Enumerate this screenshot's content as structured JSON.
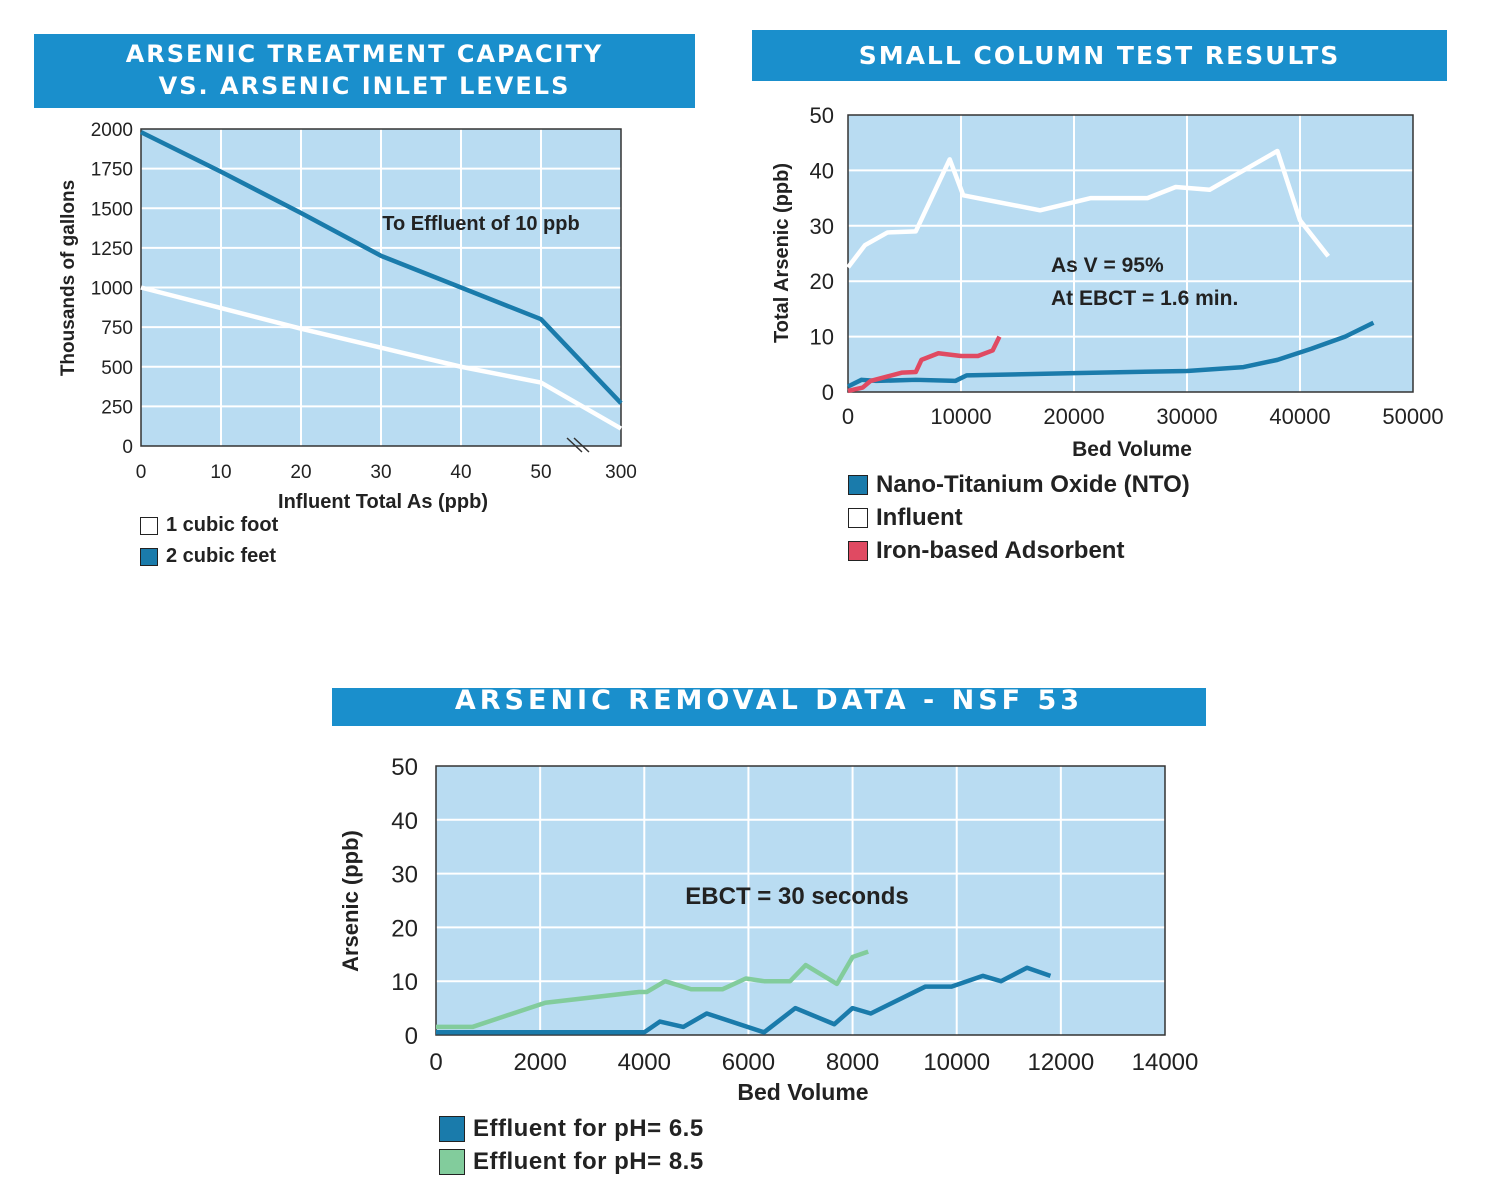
{
  "colors": {
    "banner": "#1a8fcc",
    "plot_bg": "#b9dcf2",
    "grid": "#ffffff",
    "dark_blue": "#1a7bab",
    "white_line": "#ffffff",
    "red": "#e04a62",
    "green": "#82cc9c"
  },
  "chart_data": [
    {
      "type": "line",
      "title": "ARSENIC TREATMENT CAPACITY VS. ARSENIC INLET LEVELS",
      "title_lines": [
        "ARSENIC TREATMENT CAPACITY",
        "VS. ARSENIC INLET LEVELS"
      ],
      "xlabel": "Influent Total As (ppb)",
      "ylabel": "Thousands of gallons",
      "x_ticks": [
        0,
        10,
        20,
        30,
        40,
        50,
        300
      ],
      "y_ticks": [
        0,
        250,
        500,
        750,
        1000,
        1250,
        1500,
        1750,
        2000
      ],
      "ylim": [
        0,
        2000
      ],
      "x_axis_break": "between 50 and 300",
      "annotation": "To Effluent of 10 ppb",
      "grid": true,
      "legend_position": "bottom-left",
      "series": [
        {
          "name": "1 cubic foot",
          "color": "#ffffff",
          "x": [
            "0",
            "10",
            "20",
            "30",
            "40",
            "50",
            "300"
          ],
          "y": [
            1000,
            870,
            740,
            620,
            500,
            400,
            110
          ]
        },
        {
          "name": "2 cubic feet",
          "color": "#1a7bab",
          "x": [
            "0",
            "10",
            "20",
            "30",
            "40",
            "50",
            "300"
          ],
          "y": [
            1980,
            1730,
            1470,
            1200,
            1000,
            800,
            270
          ]
        }
      ]
    },
    {
      "type": "line",
      "title": "SMALL COLUMN TEST RESULTS",
      "xlabel": "Bed Volume",
      "ylabel": "Total Arsenic (ppb)",
      "x_ticks": [
        0,
        10000,
        20000,
        30000,
        40000,
        50000
      ],
      "y_ticks": [
        0,
        10,
        20,
        30,
        40,
        50
      ],
      "xlim": [
        0,
        50000
      ],
      "ylim": [
        0,
        50
      ],
      "annotation_lines": [
        "As V = 95%",
        "At EBCT = 1.6 min."
      ],
      "grid": true,
      "legend_position": "bottom",
      "series": [
        {
          "name": "Nano-Titanium Oxide (NTO)",
          "color": "#1a7bab",
          "x": [
            0,
            1200,
            2500,
            6000,
            9500,
            10500,
            20000,
            30000,
            35000,
            38000,
            41000,
            44000,
            46500
          ],
          "y": [
            1,
            2.2,
            2,
            2.2,
            2,
            3,
            3.4,
            3.8,
            4.5,
            5.8,
            7.8,
            10,
            12.5
          ]
        },
        {
          "name": "Influent",
          "color": "#ffffff",
          "x": [
            0,
            1500,
            3500,
            6000,
            9000,
            10200,
            17000,
            21500,
            26500,
            29000,
            32000,
            38000,
            40000,
            42500
          ],
          "y": [
            22.5,
            26.5,
            28.8,
            29,
            42,
            35.5,
            32.8,
            35,
            35,
            37,
            36.5,
            43.5,
            31,
            24.5
          ]
        },
        {
          "name": "Iron-based Adsorbent",
          "color": "#e04a62",
          "x": [
            0,
            1300,
            2000,
            3500,
            4800,
            6000,
            6500,
            8000,
            10000,
            11500,
            12800,
            13400
          ],
          "y": [
            0.2,
            0.8,
            2,
            2.8,
            3.5,
            3.6,
            5.8,
            7,
            6.5,
            6.5,
            7.5,
            10
          ]
        }
      ]
    },
    {
      "type": "line",
      "title": "ARSENIC REMOVAL DATA - NSF 53",
      "xlabel": "Bed Volume",
      "ylabel": "Arsenic (ppb)",
      "x_ticks": [
        0,
        2000,
        4000,
        6000,
        8000,
        10000,
        12000,
        14000
      ],
      "y_ticks": [
        0,
        10,
        20,
        30,
        40,
        50
      ],
      "xlim": [
        0,
        14000
      ],
      "ylim": [
        0,
        50
      ],
      "annotation": "EBCT = 30 seconds",
      "grid": true,
      "legend_position": "bottom-left",
      "series": [
        {
          "name": "Effluent for pH= 6.5",
          "color": "#1a7bab",
          "x": [
            0,
            4000,
            4300,
            4750,
            5200,
            6300,
            6900,
            7650,
            8000,
            8350,
            9400,
            9900,
            10500,
            10850,
            11350,
            11800
          ],
          "y": [
            0.5,
            0.5,
            2.5,
            1.5,
            4,
            0.5,
            5,
            2,
            5,
            4,
            9,
            9,
            11,
            10,
            12.5,
            11
          ]
        },
        {
          "name": "Effluent for pH= 8.5",
          "color": "#82cc9c",
          "x": [
            0,
            700,
            2100,
            3900,
            4050,
            4400,
            4900,
            5500,
            5950,
            6300,
            6800,
            7100,
            7700,
            8000,
            8300
          ],
          "y": [
            1.5,
            1.5,
            6,
            8,
            8,
            10,
            8.5,
            8.5,
            10.5,
            10,
            10,
            13,
            9.5,
            14.5,
            15.5
          ]
        }
      ]
    }
  ]
}
